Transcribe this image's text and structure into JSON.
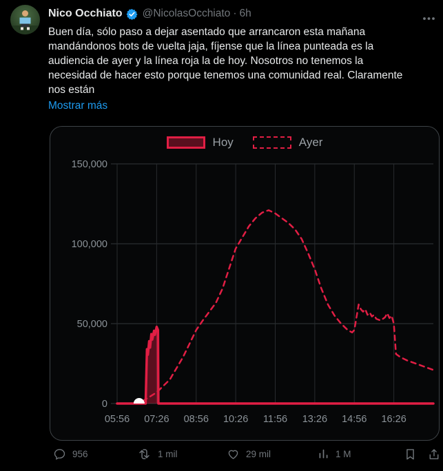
{
  "header": {
    "name": "Nico Occhiato",
    "handle": "@NicolasOcchiato",
    "separator": "·",
    "time": "6h"
  },
  "body": {
    "lines": [
      "Buen día, sólo paso a dejar asentado que arrancaron esta mañana",
      "mandándonos bots de vuelta jaja, fíjense que la línea punteada es la",
      "audiencia de ayer y la línea roja la de hoy. Nosotros no tenemos la",
      "necesidad de hacer esto porque tenemos una comunidad real. Claramente",
      "nos están"
    ],
    "show_more": "Mostrar más"
  },
  "legend": {
    "hoy": "Hoy",
    "ayer": "Ayer"
  },
  "chart_data": {
    "type": "line",
    "title": "",
    "xlabel": "",
    "ylabel": "",
    "grid": true,
    "legend_position": "top",
    "ylim": [
      0,
      150000
    ],
    "x_start": "05:56",
    "x_end": "17:56",
    "x_ticks": [
      "05:56",
      "07:26",
      "08:56",
      "10:26",
      "11:56",
      "13:26",
      "14:56",
      "16:26"
    ],
    "y_ticks": [
      {
        "label": "0",
        "value": 0
      },
      {
        "label": "50,000",
        "value": 50000
      },
      {
        "label": "100,000",
        "value": 100000
      },
      {
        "label": "150,000",
        "value": 150000
      }
    ],
    "series": [
      {
        "name": "Hoy",
        "style": "solid",
        "fill": true,
        "points": [
          [
            "05:56",
            0
          ],
          [
            "07:01",
            0
          ],
          [
            "07:04",
            34000
          ],
          [
            "07:06",
            30500
          ],
          [
            "07:09",
            39000
          ],
          [
            "07:11",
            35000
          ],
          [
            "07:14",
            43500
          ],
          [
            "07:16",
            40000
          ],
          [
            "07:20",
            45500
          ],
          [
            "07:22",
            43000
          ],
          [
            "07:26",
            48000
          ],
          [
            "07:29",
            46000
          ],
          [
            "07:30",
            0
          ],
          [
            "17:56",
            0
          ]
        ]
      },
      {
        "name": "Ayer",
        "style": "dashed",
        "fill": false,
        "points": [
          [
            "06:54",
            1500
          ],
          [
            "07:26",
            7000
          ],
          [
            "07:56",
            15000
          ],
          [
            "08:26",
            29000
          ],
          [
            "08:56",
            46000
          ],
          [
            "09:11",
            52000
          ],
          [
            "09:41",
            63000
          ],
          [
            "09:56",
            72000
          ],
          [
            "10:26",
            97000
          ],
          [
            "10:41",
            104000
          ],
          [
            "10:56",
            111000
          ],
          [
            "11:11",
            116000
          ],
          [
            "11:26",
            119500
          ],
          [
            "11:41",
            121000
          ],
          [
            "11:56",
            119000
          ],
          [
            "12:11",
            116000
          ],
          [
            "12:26",
            113000
          ],
          [
            "12:41",
            109000
          ],
          [
            "12:56",
            103000
          ],
          [
            "13:11",
            94000
          ],
          [
            "13:26",
            84000
          ],
          [
            "13:41",
            72000
          ],
          [
            "13:56",
            62000
          ],
          [
            "14:11",
            55000
          ],
          [
            "14:26",
            50000
          ],
          [
            "14:41",
            46000
          ],
          [
            "14:51",
            44500
          ],
          [
            "14:56",
            46000
          ],
          [
            "15:06",
            62000
          ],
          [
            "15:11",
            59000
          ],
          [
            "15:16",
            57500
          ],
          [
            "15:21",
            59000
          ],
          [
            "15:26",
            55500
          ],
          [
            "15:31",
            57000
          ],
          [
            "15:36",
            54500
          ],
          [
            "15:41",
            55500
          ],
          [
            "15:46",
            53000
          ],
          [
            "15:56",
            52000
          ],
          [
            "16:06",
            54000
          ],
          [
            "16:11",
            56500
          ],
          [
            "16:16",
            53500
          ],
          [
            "16:21",
            55000
          ],
          [
            "16:26",
            50000
          ],
          [
            "16:31",
            31000
          ],
          [
            "16:41",
            29000
          ],
          [
            "16:56",
            27000
          ],
          [
            "17:11",
            25500
          ],
          [
            "17:26",
            24000
          ],
          [
            "17:41",
            22500
          ],
          [
            "17:56",
            21000
          ]
        ]
      }
    ],
    "marker": {
      "time": "06:46",
      "value": 0
    }
  },
  "engagement": {
    "replies": "956",
    "reposts": "1 mil",
    "likes": "29 mil",
    "views": "1 M"
  },
  "colors": {
    "accent_red": "#e11e44",
    "accent_red_fill": "rgba(225,30,68,0.38)",
    "grid_h": "#33373a",
    "grid_v": "#282b2e",
    "link_blue": "#1d9bf0",
    "verified_blue": "#1d9bf0",
    "text_primary": "#e7e9ea",
    "text_secondary": "#71767b",
    "axis_label": "#8b9298",
    "marker_white": "#ffffff"
  }
}
